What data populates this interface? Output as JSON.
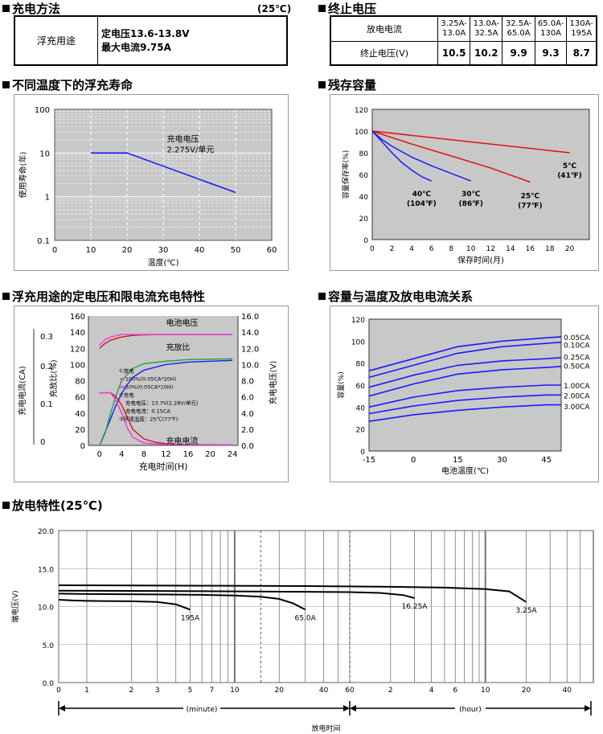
{
  "sections": {
    "charge_method": "充电方法",
    "charge_temp": "(25℃)",
    "end_voltage": "终止电压",
    "float_life": "不同温度下的浮充寿命",
    "residual": "残存容量",
    "float_charge": "浮充用途的定电压和限电流充电特性",
    "capacity_temp": "容量与温度及放电电流关系",
    "discharge": "放电特性(25℃)"
  },
  "charge_table": {
    "label": "浮充用途",
    "line1": "定电压13.6-13.8V",
    "line2": "最大电流9.75A"
  },
  "end_voltage_table": {
    "row1_label": "放电电流",
    "row2_label": "终止电压(V)",
    "currents": [
      "3.25A-13.0A",
      "13.0A-32.5A",
      "32.5A-65.0A",
      "65.0A-130A",
      "130A-195A"
    ],
    "voltages": [
      "10.5",
      "10.2",
      "9.9",
      "9.3",
      "8.7"
    ]
  },
  "chart_data": [
    {
      "id": "float_life",
      "type": "line",
      "xlabel": "温度(℃)",
      "ylabel": "使用寿命(年)",
      "yscale": "log",
      "xlim": [
        0,
        60
      ],
      "ylim": [
        0.1,
        100
      ],
      "x_ticks": [
        0,
        10,
        20,
        30,
        40,
        50,
        60
      ],
      "y_ticks": [
        0.1,
        1,
        10,
        100
      ],
      "y_tick_labels": [
        "0.1",
        "1",
        "10",
        "100"
      ],
      "annotation": [
        "充电电压",
        "2.275V/单元"
      ],
      "series": [
        {
          "x": [
            10,
            20,
            50
          ],
          "y": [
            10,
            10,
            1.25
          ],
          "color": "#1a1aff"
        }
      ]
    },
    {
      "id": "residual",
      "type": "line",
      "xlabel": "保存时间(月)",
      "ylabel": "容量保存率(%)",
      "xlim": [
        0,
        22
      ],
      "ylim": [
        0,
        120
      ],
      "x_ticks": [
        0,
        2,
        4,
        6,
        8,
        10,
        12,
        14,
        16,
        18,
        20
      ],
      "y_ticks": [
        0,
        20,
        40,
        60,
        80,
        100,
        120
      ],
      "series": [
        {
          "label": [
            "5℃",
            "(41℉)"
          ],
          "x": [
            0,
            20
          ],
          "y": [
            100,
            80
          ],
          "color": "#e01010"
        },
        {
          "label": [
            "25℃",
            "(77℉)"
          ],
          "x": [
            0,
            4,
            8,
            12,
            16
          ],
          "y": [
            100,
            88,
            77,
            66,
            53
          ],
          "color": "#e01010"
        },
        {
          "label": [
            "30℃",
            "(86℉)"
          ],
          "x": [
            0,
            1,
            2,
            4,
            6,
            8,
            10
          ],
          "y": [
            100,
            92,
            86,
            76,
            68,
            61,
            54
          ],
          "color": "#1a1aff"
        },
        {
          "label": [
            "40℃",
            "(104℉)"
          ],
          "x": [
            0,
            1,
            2,
            3,
            4,
            5,
            6
          ],
          "y": [
            100,
            90,
            80,
            71,
            64,
            58,
            54
          ],
          "color": "#1a1aff"
        }
      ]
    },
    {
      "id": "float_charge",
      "type": "line",
      "xlabel": "充电时间(H)",
      "ylabel_left_outer": "充电电流(CA)",
      "ylabel_left_inner": "充放比(%)",
      "ylabel_right": "充电电压(V)",
      "xlim": [
        -2,
        25
      ],
      "ylim_left": [
        0,
        160
      ],
      "ylim_right": [
        0,
        16
      ],
      "x_ticks": [
        0,
        4,
        8,
        12,
        16,
        20,
        24
      ],
      "y_left_ticks": [
        0,
        20,
        40,
        60,
        80,
        100,
        120,
        140,
        160
      ],
      "y_right_ticks": [
        "0.0",
        "2.0",
        "4.0",
        "6.0",
        "8.0",
        "10.0",
        "12.0",
        "14.0",
        "16.0"
      ],
      "ca_ticks": [
        "0",
        "0.1",
        "0.2",
        "0.3"
      ],
      "labels": {
        "voltage": "电池电压",
        "ratio": "充放比",
        "current": "充电电流"
      },
      "legend_lines": [
        "①放电",
        "100%(0.05CA*20H)",
        "50%(0.05CA*10H)",
        "②充电",
        "充电电压：13.7V(2.28V/单元)",
        "充电电流：0.15CA",
        "③环境温度：25℃(77℉)"
      ],
      "series": [
        {
          "name": "电池电压",
          "x": [
            0,
            1,
            2,
            4,
            6,
            8,
            12,
            16,
            20,
            24
          ],
          "y": [
            120,
            126,
            130,
            134,
            136,
            136.5,
            137,
            137,
            137,
            137
          ],
          "color": "#e01010"
        },
        {
          "name": "电池电压",
          "x": [
            0,
            1,
            2,
            4,
            6,
            12,
            24
          ],
          "y": [
            124,
            131,
            134,
            137,
            137,
            137,
            137
          ],
          "color": "#e040e0"
        },
        {
          "name": "充放比",
          "x": [
            0,
            1,
            2,
            3,
            4,
            5,
            6,
            8,
            12,
            16,
            20,
            24
          ],
          "y": [
            0,
            16,
            33,
            50,
            64,
            75,
            84,
            93,
            100,
            103,
            104,
            105
          ],
          "color": "#1a1aff"
        },
        {
          "name": "充放比",
          "x": [
            0,
            1,
            2,
            3,
            4,
            6,
            8,
            12,
            16,
            24
          ],
          "y": [
            0,
            15,
            40,
            62,
            80,
            95,
            101,
            104,
            106,
            107
          ],
          "color": "#20a040"
        },
        {
          "name": "充电电流",
          "x": [
            0,
            2,
            3,
            4,
            5,
            6,
            8,
            10,
            12,
            16,
            24
          ],
          "y": [
            65,
            65,
            60,
            50,
            35,
            20,
            8,
            4,
            2,
            1,
            0.5
          ],
          "color": "#e01010"
        },
        {
          "name": "充电电流",
          "x": [
            0,
            2,
            3,
            4,
            5,
            6,
            8,
            12,
            24
          ],
          "y": [
            65,
            65,
            55,
            40,
            22,
            10,
            3,
            1,
            0.5
          ],
          "color": "#e040e0"
        }
      ]
    },
    {
      "id": "capacity_temp",
      "type": "line",
      "xlabel": "电池温度(℃)",
      "ylabel": "容量(%)",
      "xlim": [
        -15,
        50
      ],
      "ylim": [
        0,
        120
      ],
      "x_ticks": [
        -15,
        0,
        15,
        30,
        45
      ],
      "y_ticks": [
        0,
        20,
        40,
        60,
        80,
        100,
        120
      ],
      "series": [
        {
          "name": "0.05CA",
          "x": [
            -15,
            0,
            15,
            30,
            45,
            50
          ],
          "y": [
            73,
            84,
            95,
            100,
            103,
            104
          ],
          "color": "#1a1aff"
        },
        {
          "name": "0.10CA",
          "x": [
            -15,
            0,
            15,
            30,
            45,
            50
          ],
          "y": [
            67,
            78,
            89,
            95,
            98,
            99
          ],
          "color": "#1a1aff"
        },
        {
          "name": "0.25CA",
          "x": [
            -15,
            0,
            15,
            30,
            45,
            50
          ],
          "y": [
            58,
            69,
            78,
            82,
            84,
            85
          ],
          "color": "#1a1aff"
        },
        {
          "name": "0.50CA",
          "x": [
            -15,
            0,
            15,
            30,
            45,
            50
          ],
          "y": [
            50,
            61,
            70,
            74,
            76,
            77
          ],
          "color": "#1a1aff"
        },
        {
          "name": "1.00CA",
          "x": [
            -15,
            0,
            15,
            30,
            45,
            50
          ],
          "y": [
            40,
            49,
            55,
            58,
            60,
            60
          ],
          "color": "#1a1aff"
        },
        {
          "name": "2.00CA",
          "x": [
            -15,
            0,
            15,
            30,
            45,
            50
          ],
          "y": [
            34,
            41,
            46,
            49,
            51,
            51
          ],
          "color": "#1a1aff"
        },
        {
          "name": "3.00CA",
          "x": [
            -15,
            0,
            15,
            30,
            45,
            50
          ],
          "y": [
            27,
            33,
            37,
            40,
            42,
            42
          ],
          "color": "#1a1aff"
        }
      ]
    },
    {
      "id": "discharge",
      "type": "line",
      "xlabel": "放电时间",
      "ylabel": "端电压(V)",
      "xscale": "log",
      "ylim": [
        0,
        20
      ],
      "y_ticks": [
        "0.0",
        "5.0",
        "10.0",
        "15.0",
        "20.0"
      ],
      "minute_ticks": [
        "0",
        "1",
        "2",
        "3",
        "5",
        "7",
        "10",
        "20",
        "40",
        "60"
      ],
      "hour_ticks": [
        "2",
        "4",
        "6",
        "10",
        "20",
        "40"
      ],
      "unit_minute": "(minute)",
      "unit_hour": "(hour)",
      "series": [
        {
          "name": "195A",
          "x_min": [
            0,
            0.5,
            1,
            2,
            3,
            4,
            5
          ],
          "y": [
            10.9,
            10.8,
            10.75,
            10.7,
            10.6,
            10.3,
            9.6
          ]
        },
        {
          "name": "65.0A",
          "x_min": [
            0,
            1,
            3,
            6,
            10,
            15,
            20,
            25,
            30
          ],
          "y": [
            11.7,
            11.65,
            11.6,
            11.55,
            11.45,
            11.3,
            11,
            10.4,
            9.6
          ]
        },
        {
          "name": "16.25A",
          "x_min": [
            0,
            3,
            10,
            30,
            60,
            100,
            150,
            180
          ],
          "y": [
            12.1,
            12.05,
            12,
            11.95,
            11.9,
            11.8,
            11.5,
            11.1
          ]
        },
        {
          "name": "3.25A",
          "x_min": [
            0,
            5,
            30,
            120,
            300,
            600,
            900,
            1200
          ],
          "y": [
            12.8,
            12.75,
            12.7,
            12.6,
            12.5,
            12.3,
            12,
            10.6
          ]
        }
      ]
    }
  ]
}
